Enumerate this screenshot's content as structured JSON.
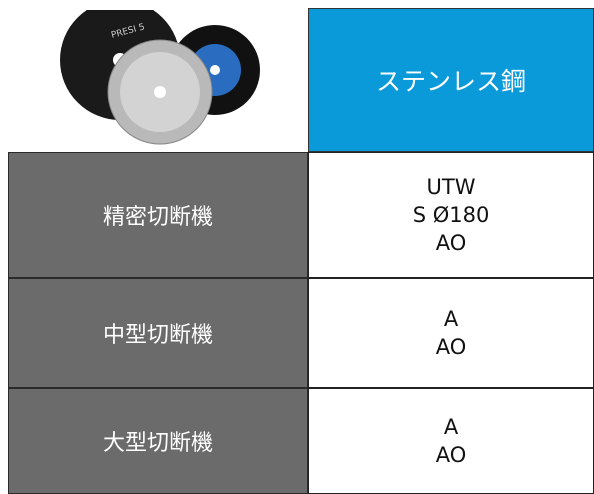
{
  "header": {
    "disc_label": "PRESI 5",
    "title": "ステンレス鋼"
  },
  "table": {
    "rows": [
      {
        "machine": "精密切断機",
        "blades": [
          "UTW",
          "S Ø180",
          "AO"
        ]
      },
      {
        "machine": "中型切断機",
        "blades": [
          "A",
          "AO"
        ]
      },
      {
        "machine": "大型切断機",
        "blades": [
          "A",
          "AO"
        ]
      }
    ]
  }
}
